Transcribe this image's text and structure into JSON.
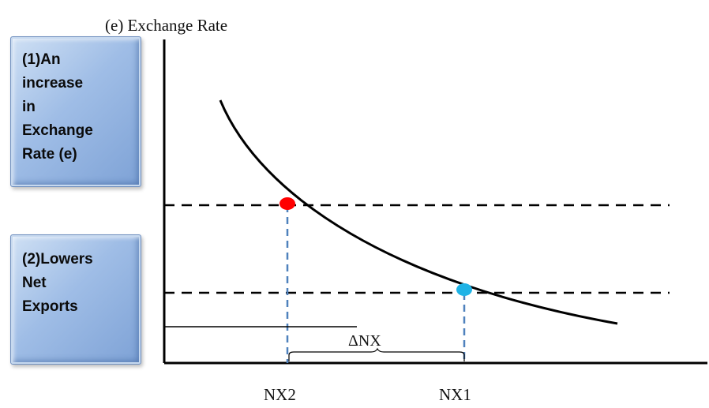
{
  "axis_title": "(e) Exchange Rate",
  "boxes": {
    "box1": "(1)An\nincrease\nin\nExchange\nRate (e)",
    "box2": "(2)Lowers\nNet\nExports"
  },
  "x_labels": {
    "nx2": "NX2",
    "nx1": "NX1"
  },
  "delta_label": "ΔNX",
  "colors": {
    "curve": "#000000",
    "guide_horizontal": "#000000",
    "guide_vertical": "#4f81bd",
    "point_nx2": "#ff0000",
    "point_nx1": "#1fb3e6",
    "box_fill": "#9fbde6"
  }
}
